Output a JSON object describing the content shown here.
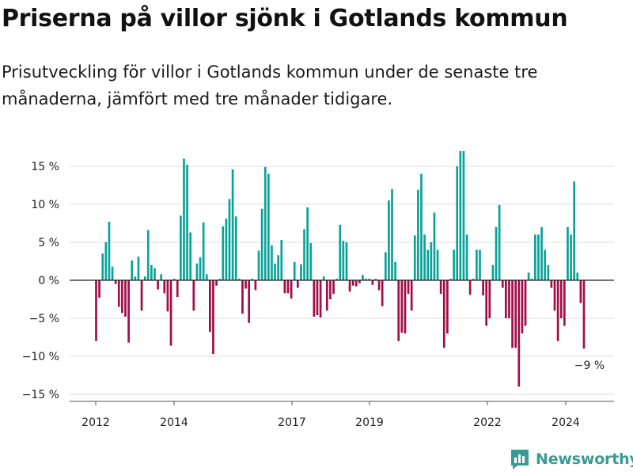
{
  "header": {
    "title": "Priserna på villor sjönk i Gotlands kommun",
    "subtitle": "Prisutveckling för villor i Gotlands kommun under de senaste tre månaderna, jämfört med tre månader tidigare."
  },
  "brand": {
    "name": "Newsworthy",
    "icon": "newsworthy-logo-icon",
    "color": "#3a9a95"
  },
  "chart_data": {
    "type": "bar",
    "x_ticks": [
      "2012",
      "2014",
      "2017",
      "2019",
      "2022",
      "2024"
    ],
    "y_ticks": [
      "15 %",
      "10 %",
      "5 %",
      "0 %",
      "−5 %",
      "−10 %",
      "−15 %"
    ],
    "ylim": [
      -16,
      17
    ],
    "grid": true,
    "colors": {
      "positive": "#0aa39a",
      "negative": "#a10d48"
    },
    "annotation": {
      "text": "−9 %"
    },
    "series": [
      {
        "values": [
          -8.0,
          -2.3,
          3.5,
          5.0,
          7.7,
          1.8,
          -0.5,
          -3.5,
          -4.3,
          -4.8,
          -8.2,
          2.6,
          0.5,
          3.1,
          -4.0,
          0.5,
          6.6,
          2.0,
          1.6,
          -1.2,
          0.8,
          -1.7,
          -4.1,
          -8.6,
          0.2,
          -2.2,
          8.5,
          16.0,
          15.2,
          6.3,
          -4.0,
          2.2,
          3.0,
          7.6,
          0.8,
          -6.8,
          -9.7,
          -0.7,
          0.2,
          7.1,
          8.1,
          10.7,
          14.6,
          8.4,
          0.2,
          -4.4,
          -1.1,
          -5.6,
          0.2,
          -1.3,
          3.9,
          9.4,
          14.9,
          14.0,
          4.6,
          2.2,
          3.3,
          5.3,
          -1.7,
          -1.7,
          -2.4,
          2.4,
          -1.0,
          2.1,
          6.7,
          9.6,
          4.9,
          -4.8,
          -4.6,
          -4.9,
          0.5,
          -4.0,
          -2.5,
          -1.8,
          0.2,
          7.3,
          5.2,
          5.0,
          -1.5,
          -0.7,
          -0.8,
          -0.4,
          0.7,
          0.2,
          0.2,
          -0.6,
          0.2,
          -1.3,
          -3.4,
          3.7,
          10.5,
          12.0,
          2.4,
          -8.0,
          -6.9,
          -7.0,
          -1.8,
          -4.0,
          5.9,
          11.9,
          14.0,
          6.0,
          4.0,
          5.0,
          8.9,
          4.0,
          -1.8,
          -8.9,
          -7.0,
          0.2,
          4.0,
          15.0,
          17.0,
          17.0,
          6.0,
          -1.9,
          0.2,
          4.0,
          4.0,
          -2.0,
          -6.0,
          -5.0,
          2.0,
          7.0,
          9.9,
          -1.0,
          -5.0,
          -5.0,
          -8.9,
          -8.9,
          -14.0,
          -7.0,
          -6.0,
          1.0,
          0.2,
          6.0,
          6.0,
          7.0,
          4.0,
          2.0,
          -1.0,
          -4.0,
          -8.0,
          -5.0,
          -6.0,
          7.0,
          6.0,
          13.0,
          1.0,
          -3.0,
          -9.0
        ]
      }
    ]
  }
}
